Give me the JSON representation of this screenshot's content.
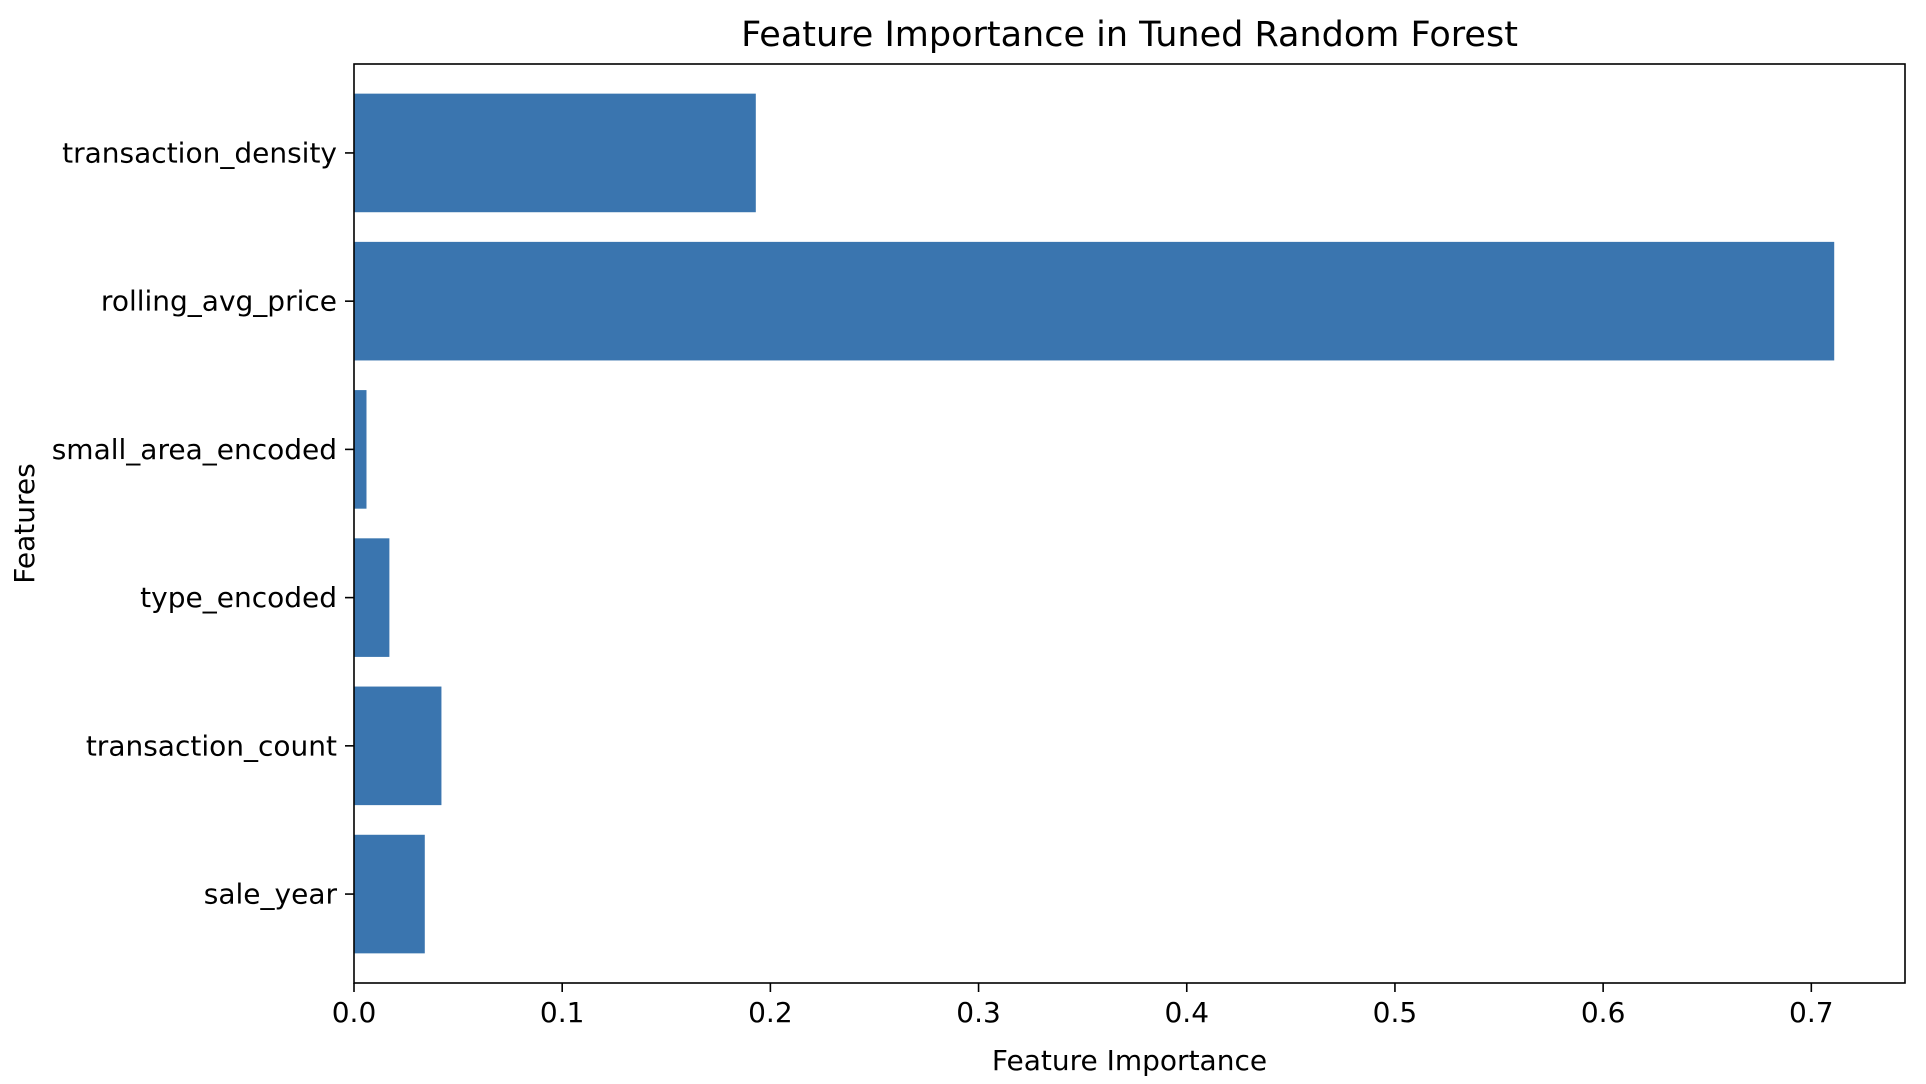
{
  "chart_data": {
    "type": "bar",
    "orientation": "horizontal",
    "title": "Feature Importance in Tuned Random Forest",
    "xlabel": "Feature Importance",
    "ylabel": "Features",
    "categories": [
      "sale_year",
      "transaction_count",
      "type_encoded",
      "small_area_encoded",
      "rolling_avg_price",
      "transaction_density"
    ],
    "values": [
      0.034,
      0.042,
      0.017,
      0.006,
      0.711,
      0.193
    ],
    "xlim": [
      0,
      0.745
    ],
    "xticks": [
      0.0,
      0.1,
      0.2,
      0.3,
      0.4,
      0.5,
      0.6,
      0.7
    ],
    "xtick_labels": [
      "0.0",
      "0.1",
      "0.2",
      "0.3",
      "0.4",
      "0.5",
      "0.6",
      "0.7"
    ],
    "grid": false,
    "bar_color": "#3a75af"
  }
}
